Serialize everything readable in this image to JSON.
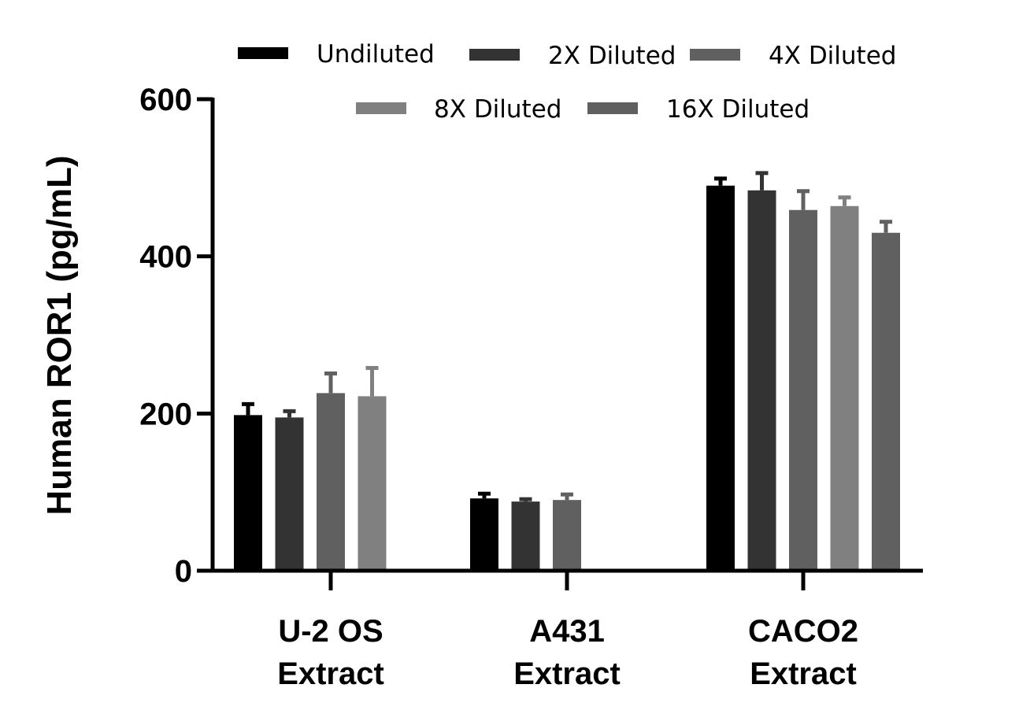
{
  "chart_data": {
    "type": "bar",
    "title": "",
    "xlabel": "",
    "ylabel": "Human ROR1 (pg/mL)",
    "ylim": [
      0,
      600
    ],
    "yticks": [
      0,
      200,
      400,
      600
    ],
    "grid": false,
    "legend_position": "top",
    "categories": [
      {
        "line1": "U-2 OS",
        "line2": "Extract"
      },
      {
        "line1": "A431",
        "line2": "Extract"
      },
      {
        "line1": "CACO2",
        "line2": "Extract"
      }
    ],
    "series": [
      {
        "name": "Undiluted",
        "color": "#000000",
        "values": [
          198,
          92,
          490
        ],
        "errors": [
          14,
          6,
          9
        ]
      },
      {
        "name": "2X Diluted",
        "color": "#333333",
        "values": [
          195,
          88,
          484
        ],
        "errors": [
          8,
          3,
          22
        ]
      },
      {
        "name": "4X Diluted",
        "color": "#606060",
        "values": [
          226,
          90,
          459
        ],
        "errors": [
          25,
          7,
          24
        ]
      },
      {
        "name": "8X Diluted",
        "color": "#808080",
        "values": [
          222,
          null,
          464
        ],
        "errors": [
          36,
          null,
          11
        ]
      },
      {
        "name": "16X Diluted",
        "color": "#606060",
        "values": [
          null,
          null,
          430
        ],
        "errors": [
          null,
          null,
          14
        ]
      }
    ]
  }
}
